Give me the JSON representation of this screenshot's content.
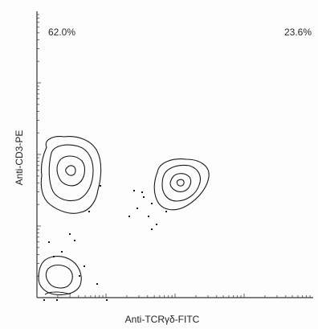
{
  "chart_data": {
    "type": "contour",
    "xlabel": "Anti-TCRγδ-FITC",
    "ylabel": "Anti-CD3-PE",
    "xscale": "log",
    "yscale": "log",
    "quadrant_stats": [
      {
        "quadrant": "upper-left",
        "value": "62.0%"
      },
      {
        "quadrant": "upper-right",
        "value": "23.6%"
      }
    ],
    "populations": [
      {
        "id": "cd3-pos-tcrgd-neg",
        "location": "upper-left",
        "contour_levels": 3
      },
      {
        "id": "cd3-pos-tcrgd-pos",
        "location": "upper-right",
        "contour_levels": 3
      },
      {
        "id": "double-negative",
        "location": "lower-left",
        "contour_levels": 2
      }
    ],
    "colors": {
      "contour": "#1a1a1a",
      "axis": "#333333",
      "background": "#fcfcfc"
    }
  }
}
